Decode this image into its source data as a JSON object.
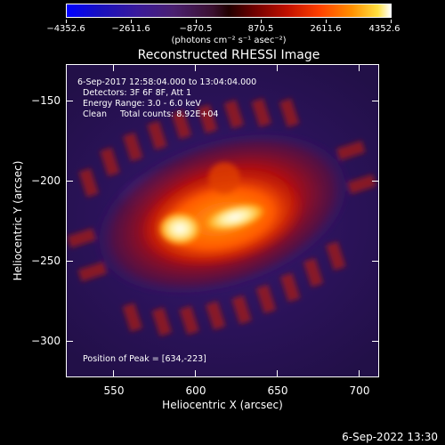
{
  "colorbar": {
    "labels": [
      "−4352.6",
      "−2611.6",
      "−870.5",
      "870.5",
      "2611.6",
      "4352.6"
    ],
    "units": "(photons cm⁻² s⁻¹ asec⁻²)"
  },
  "title": "Reconstructed RHESSI Image",
  "annotations": {
    "time_range": "6-Sep-2017 12:58:04.000 to 13:04:04.000",
    "detectors": "Detectors: 3F 6F 8F, Att 1",
    "energy": "Energy Range: 3.0 - 6.0 keV",
    "clean": "Clean     Total counts: 8.92E+04",
    "peak": "Position of Peak = [634,-223]"
  },
  "axes": {
    "xlabel": "Heliocentric X (arcsec)",
    "ylabel": "Heliocentric Y (arcsec)",
    "xticks": [
      "550",
      "600",
      "650",
      "700"
    ],
    "yticks": [
      "−150",
      "−200",
      "−250",
      "−300"
    ]
  },
  "footer": "6-Sep-2022 13:30",
  "colors": {
    "background": "#000000",
    "low": "#0000ff",
    "mid": "#200000",
    "high": "#ffffff"
  }
}
